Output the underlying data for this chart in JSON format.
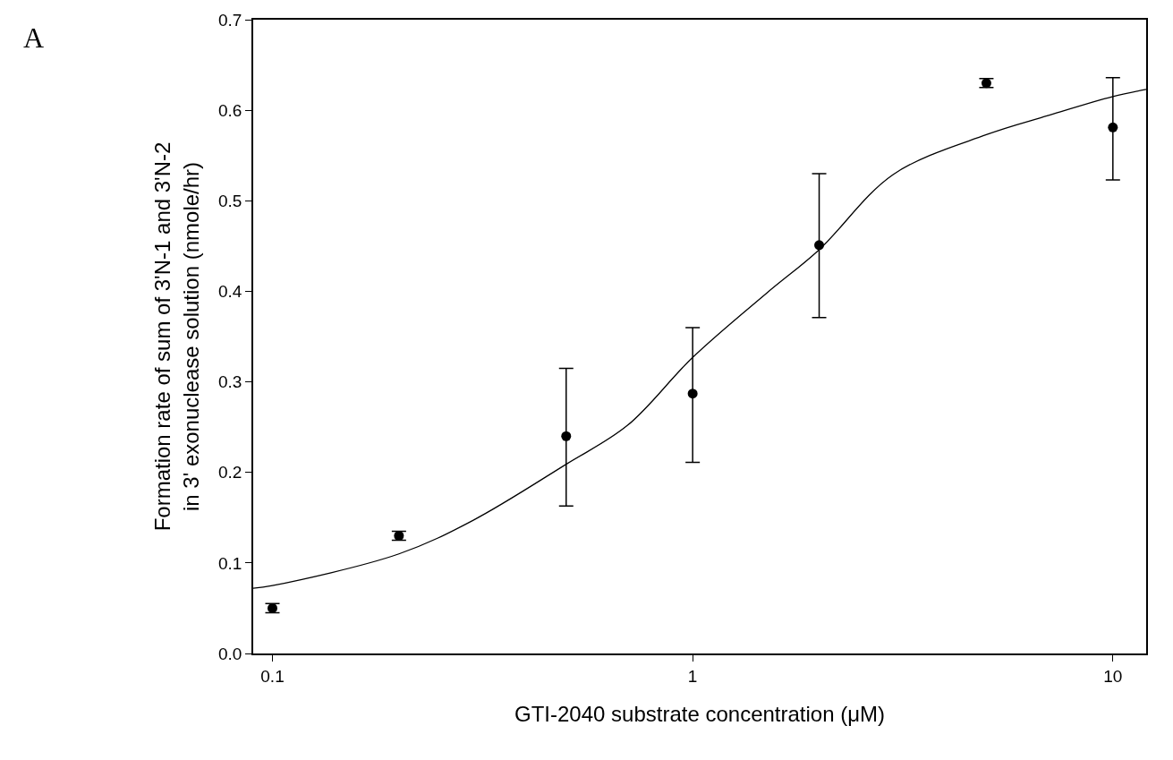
{
  "chart_data": {
    "type": "scatter",
    "xlabel": "GTI-2040 substrate concentration (μM)",
    "ylabel": "Formation rate of sum of 3'N-1 and 3'N-2\nin 3' exonuclease solution (nmole/hr)",
    "annotations": [
      "A"
    ],
    "log": "x",
    "xlim": [
      0.09,
      12
    ],
    "xticks": [
      0.1,
      1,
      10
    ],
    "ylim": [
      0,
      0.7
    ],
    "yticks": [
      {
        "value": 0,
        "label": "0.0"
      },
      0.1,
      0.2,
      0.3,
      0.4,
      0.5,
      0.6,
      0.7
    ],
    "marker": "circle",
    "series": [
      {
        "color": "#000000",
        "x": [
          0.1,
          0.2,
          0.5,
          1,
          2,
          5,
          10
        ],
        "values": [
          0.05,
          0.13,
          0.24,
          0.287,
          0.451,
          0.63,
          0.581
        ],
        "errors": [
          0.005,
          0.005,
          [
            0.163,
            0.315
          ],
          [
            0.211,
            0.36
          ],
          [
            0.371,
            0.53
          ],
          0.005,
          [
            0.523,
            0.636
          ]
        ]
      },
      {
        "type": "line",
        "color": "#000000",
        "marker": "none",
        "line_style": "solid",
        "x": [
          0.09,
          0.1,
          0.2,
          0.3,
          0.5,
          0.7,
          1,
          1.5,
          2,
          3,
          5,
          7,
          10,
          12
        ],
        "values": [
          0.072,
          0.075,
          0.11,
          0.147,
          0.209,
          0.252,
          0.327,
          0.398,
          0.446,
          0.529,
          0.573,
          0.594,
          0.615,
          0.623
        ]
      }
    ]
  }
}
